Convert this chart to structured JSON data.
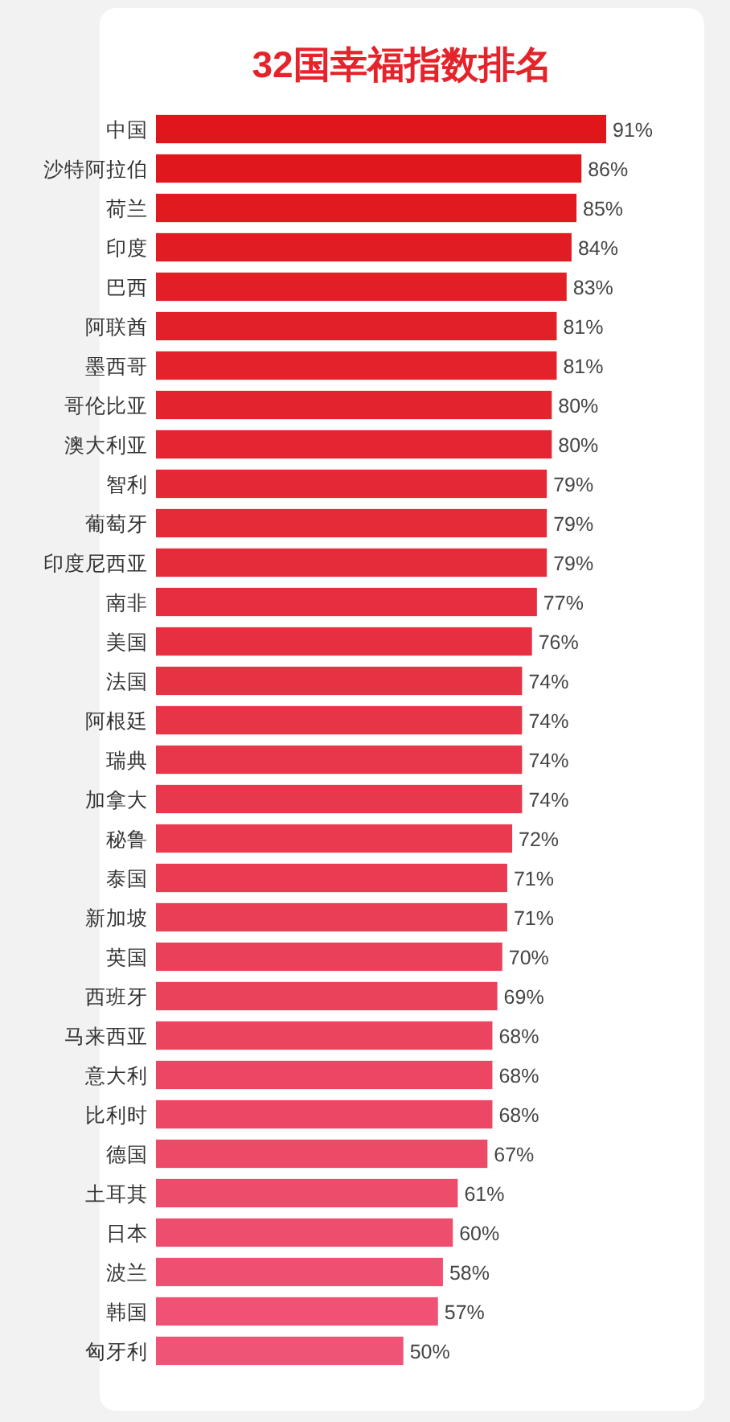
{
  "chart_data": {
    "type": "bar",
    "orientation": "horizontal",
    "title": "32国幸福指数排名",
    "value_labels": [
      "91%",
      "86%",
      "85%",
      "84%",
      "83%",
      "81%",
      "81%",
      "80%",
      "80%",
      "79%",
      "79%",
      "79%",
      "77%",
      "76%",
      "74%",
      "74%",
      "74%",
      "74%",
      "72%",
      "71%",
      "71%",
      "70%",
      "69%",
      "68%",
      "68%",
      "68%",
      "67%",
      "61%",
      "60%",
      "58%",
      "57%",
      "50%"
    ],
    "categories": [
      "中国",
      "沙特阿拉伯",
      "荷兰",
      "印度",
      "巴西",
      "阿联酋",
      "墨西哥",
      "哥伦比亚",
      "澳大利亚",
      "智利",
      "葡萄牙",
      "印度尼西亚",
      "南非",
      "美国",
      "法国",
      "阿根廷",
      "瑞典",
      "加拿大",
      "秘鲁",
      "泰国",
      "新加坡",
      "英国",
      "西班牙",
      "马来西亚",
      "意大利",
      "比利时",
      "德国",
      "土耳其",
      "日本",
      "波兰",
      "韩国",
      "匈牙利"
    ],
    "values": [
      91,
      86,
      85,
      84,
      83,
      81,
      81,
      80,
      80,
      79,
      79,
      79,
      77,
      76,
      74,
      74,
      74,
      74,
      72,
      71,
      71,
      70,
      69,
      68,
      68,
      68,
      67,
      61,
      60,
      58,
      57,
      50
    ],
    "colors": [
      "#e0161a",
      "#e0181d",
      "#e11a20",
      "#e11c23",
      "#e21e26",
      "#e22029",
      "#e3222c",
      "#e3242f",
      "#e42632",
      "#e42835",
      "#e52a38",
      "#e52c3b",
      "#e62e3e",
      "#e63041",
      "#e73244",
      "#e73447",
      "#e8364a",
      "#e8384d",
      "#e93a50",
      "#e93c53",
      "#ea3e56",
      "#ea4059",
      "#eb425c",
      "#eb445f",
      "#ec4662",
      "#ec4865",
      "#ed4a68",
      "#ed4c6b",
      "#ee4e6e",
      "#ee5071",
      "#ef5274",
      "#ef5477"
    ]
  }
}
